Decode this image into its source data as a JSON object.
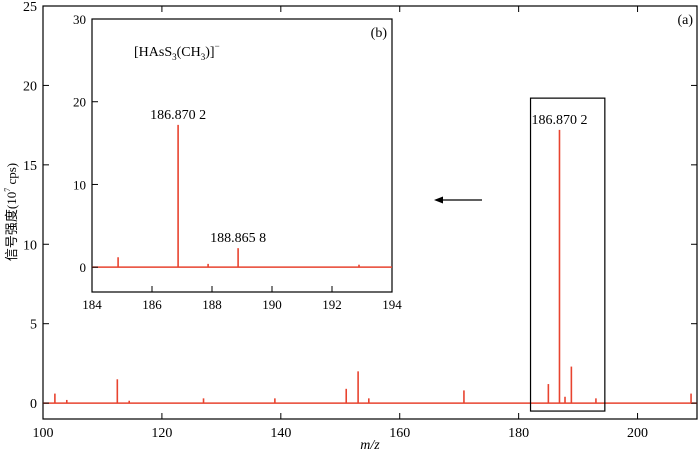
{
  "chart_data": [
    {
      "type": "bar",
      "panel_label": "(a)",
      "xlabel": "m/z",
      "ylabel_main": "信号强度",
      "ylabel_unit": "(10",
      "ylabel_exp": "7",
      "ylabel_end": " cps)",
      "xlim": [
        100,
        210
      ],
      "ylim": [
        -1,
        25
      ],
      "xticks": [
        100,
        120,
        140,
        160,
        180,
        200
      ],
      "yticks": [
        0,
        5,
        10,
        15,
        20,
        25
      ],
      "series": [
        {
          "color": "#e8432f",
          "x": [
            102.0,
            104.0,
            112.5,
            114.5,
            127.0,
            139.0,
            151.0,
            153.0,
            154.8,
            170.8,
            185.0,
            186.87,
            187.8,
            188.87,
            193.0,
            209.0
          ],
          "y": [
            0.6,
            0.2,
            1.5,
            0.15,
            0.3,
            0.3,
            0.9,
            2.0,
            0.3,
            0.8,
            1.2,
            17.2,
            0.4,
            2.3,
            0.3,
            0.6
          ]
        }
      ],
      "annotations": [
        {
          "text": "186.870 2",
          "x": 186.87,
          "y": 17.2
        }
      ],
      "highlight_box": {
        "x": [
          182,
          194.5
        ],
        "y": [
          -0.5,
          19.2
        ]
      }
    },
    {
      "type": "bar",
      "panel_label": "(b)",
      "title_main": "[HAsS",
      "title_sub1": "3",
      "title_mid": "(CH",
      "title_sub2": "3",
      "title_end": ")]",
      "title_sup": "−",
      "xlim": [
        184,
        194
      ],
      "ylim": [
        -3,
        30
      ],
      "xticks": [
        184,
        186,
        188,
        190,
        192,
        194
      ],
      "yticks": [
        0,
        10,
        20,
        30
      ],
      "series": [
        {
          "color": "#e8432f",
          "x": [
            184.87,
            186.87,
            187.87,
            188.87,
            192.9
          ],
          "y": [
            1.2,
            17.2,
            0.4,
            2.3,
            0.3
          ]
        }
      ],
      "annotations": [
        {
          "text": "186.870 2",
          "x": 186.87,
          "y": 17.2
        },
        {
          "text": "188.865 8",
          "x": 188.87,
          "y": 2.3
        }
      ]
    }
  ]
}
